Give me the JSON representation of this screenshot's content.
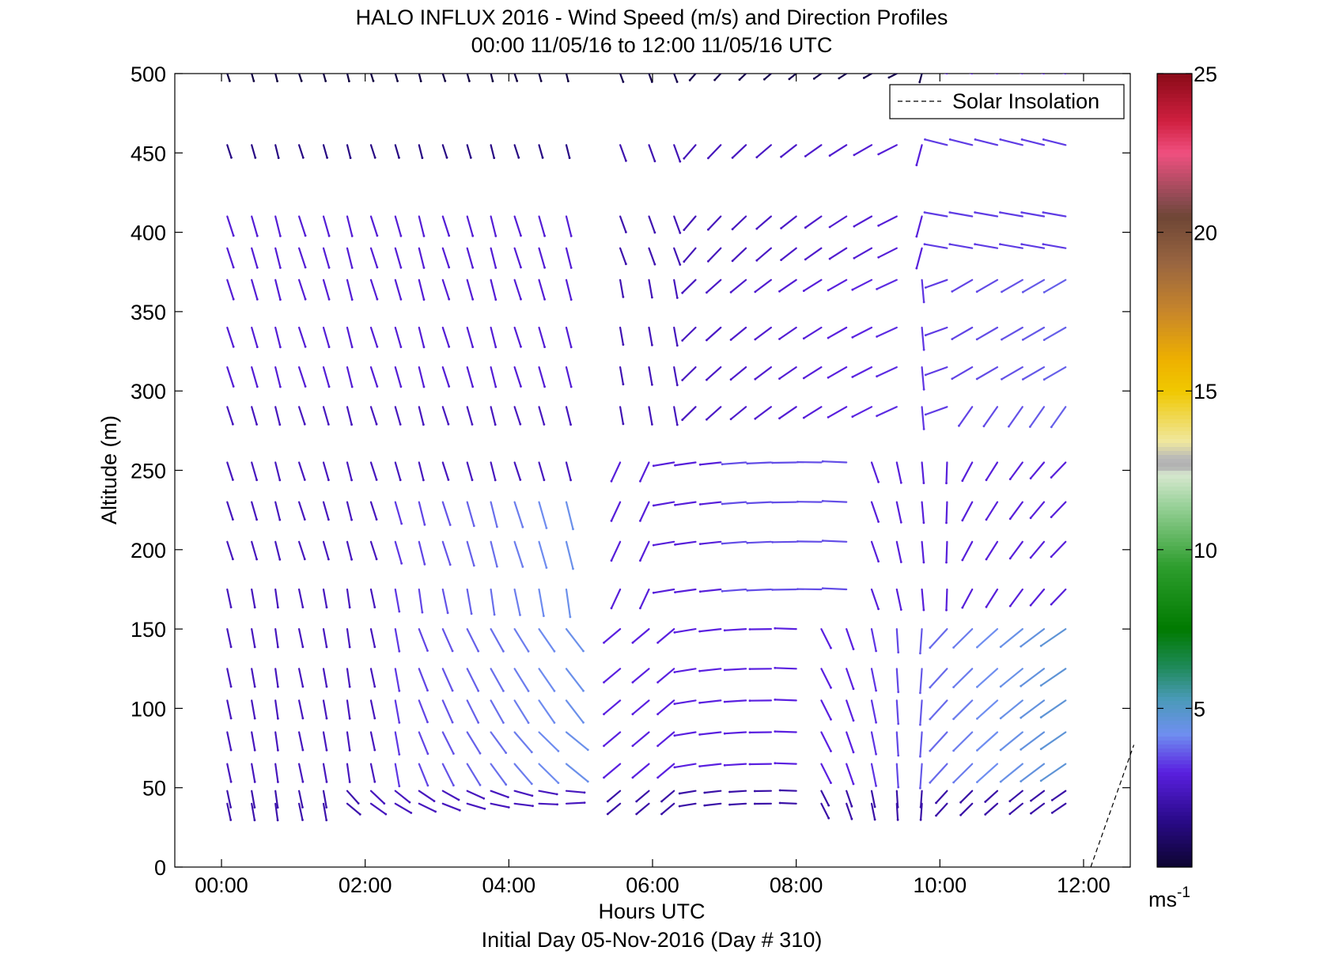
{
  "chart_data": {
    "type": "wind-barb-profile",
    "title": "HALO INFLUX 2016 - Wind Speed (m/s) and Direction Profiles",
    "subtitle": "00:00 11/05/16 to 12:00 11/05/16  UTC",
    "xlabel": "Hours UTC",
    "x_sublabel": "Initial Day 05-Nov-2016 (Day # 310)",
    "ylabel": "Altitude (m)",
    "xlim_hours": [
      -0.65,
      12.65
    ],
    "ylim": [
      0,
      500
    ],
    "x_ticks": [
      {
        "hour": 0,
        "label": "00:00"
      },
      {
        "hour": 2,
        "label": "02:00"
      },
      {
        "hour": 4,
        "label": "04:00"
      },
      {
        "hour": 6,
        "label": "06:00"
      },
      {
        "hour": 8,
        "label": "08:00"
      },
      {
        "hour": 10,
        "label": "10:00"
      },
      {
        "hour": 12,
        "label": "12:00"
      }
    ],
    "y_ticks": [
      0,
      50,
      100,
      150,
      200,
      250,
      300,
      350,
      400,
      450,
      500
    ],
    "legend": {
      "label": "Solar Insolation",
      "style": "dashed",
      "color": "#000000",
      "placement": "top-right"
    },
    "solar_insolation_line": [
      {
        "hour": 12.1,
        "alt": 0
      },
      {
        "hour": 12.7,
        "alt": 77
      }
    ],
    "colorbar": {
      "min": 0,
      "max": 25,
      "ticks": [
        5,
        10,
        15,
        20,
        25
      ],
      "unit_label": "ms",
      "unit_exponent": "-1",
      "stops": [
        {
          "v": 0.0,
          "c": "#0d0530"
        },
        {
          "v": 1.5,
          "c": "#2a0a8a"
        },
        {
          "v": 3.0,
          "c": "#5a20e0"
        },
        {
          "v": 4.2,
          "c": "#6f8ff0"
        },
        {
          "v": 5.3,
          "c": "#4a9ab8"
        },
        {
          "v": 6.3,
          "c": "#1f8a5a"
        },
        {
          "v": 7.5,
          "c": "#007a00"
        },
        {
          "v": 9.5,
          "c": "#2e9e2e"
        },
        {
          "v": 11.5,
          "c": "#9fd49f"
        },
        {
          "v": 12.4,
          "c": "#d8e8d0"
        },
        {
          "v": 12.6,
          "c": "#b0b0b0"
        },
        {
          "v": 12.9,
          "c": "#b8b8b8"
        },
        {
          "v": 13.4,
          "c": "#f0e8a0"
        },
        {
          "v": 15.0,
          "c": "#f0c800"
        },
        {
          "v": 16.0,
          "c": "#eeb000"
        },
        {
          "v": 17.5,
          "c": "#c8862a"
        },
        {
          "v": 19.0,
          "c": "#9a6640"
        },
        {
          "v": 20.5,
          "c": "#6e4636"
        },
        {
          "v": 21.0,
          "c": "#8a4a50"
        },
        {
          "v": 22.5,
          "c": "#f05080"
        },
        {
          "v": 23.5,
          "c": "#d02040"
        },
        {
          "v": 25.0,
          "c": "#8a0a18"
        }
      ]
    },
    "altitudes_m": [
      40,
      48,
      65,
      85,
      105,
      125,
      150,
      175,
      205,
      230,
      255,
      290,
      315,
      340,
      370,
      390,
      410,
      455,
      500
    ],
    "series": [
      {
        "period": "00:00-04:50",
        "hours": [
          0.08,
          0.42,
          0.75,
          1.08,
          1.42,
          1.75,
          2.08,
          2.42,
          2.75,
          3.08,
          3.42,
          3.75,
          4.08,
          4.42,
          4.8
        ],
        "speed_ms": "1.5-4.5",
        "direction": "mostly from N to NNW at all levels; NW-SW below 60 m after 02:00"
      },
      {
        "period": "05:20-11:45",
        "hours": [
          5.55,
          5.95,
          6.3,
          6.6,
          6.95,
          7.3,
          7.65,
          8.0,
          8.35,
          8.7,
          9.05,
          9.4,
          9.75,
          10.1,
          10.45,
          10.8,
          11.15,
          11.45,
          11.75
        ],
        "speed_ms": "1-4.5",
        "direction": "SW veering to W above 150 m; variable/N near 10:00; E above 380 m after 10:15"
      }
    ]
  }
}
